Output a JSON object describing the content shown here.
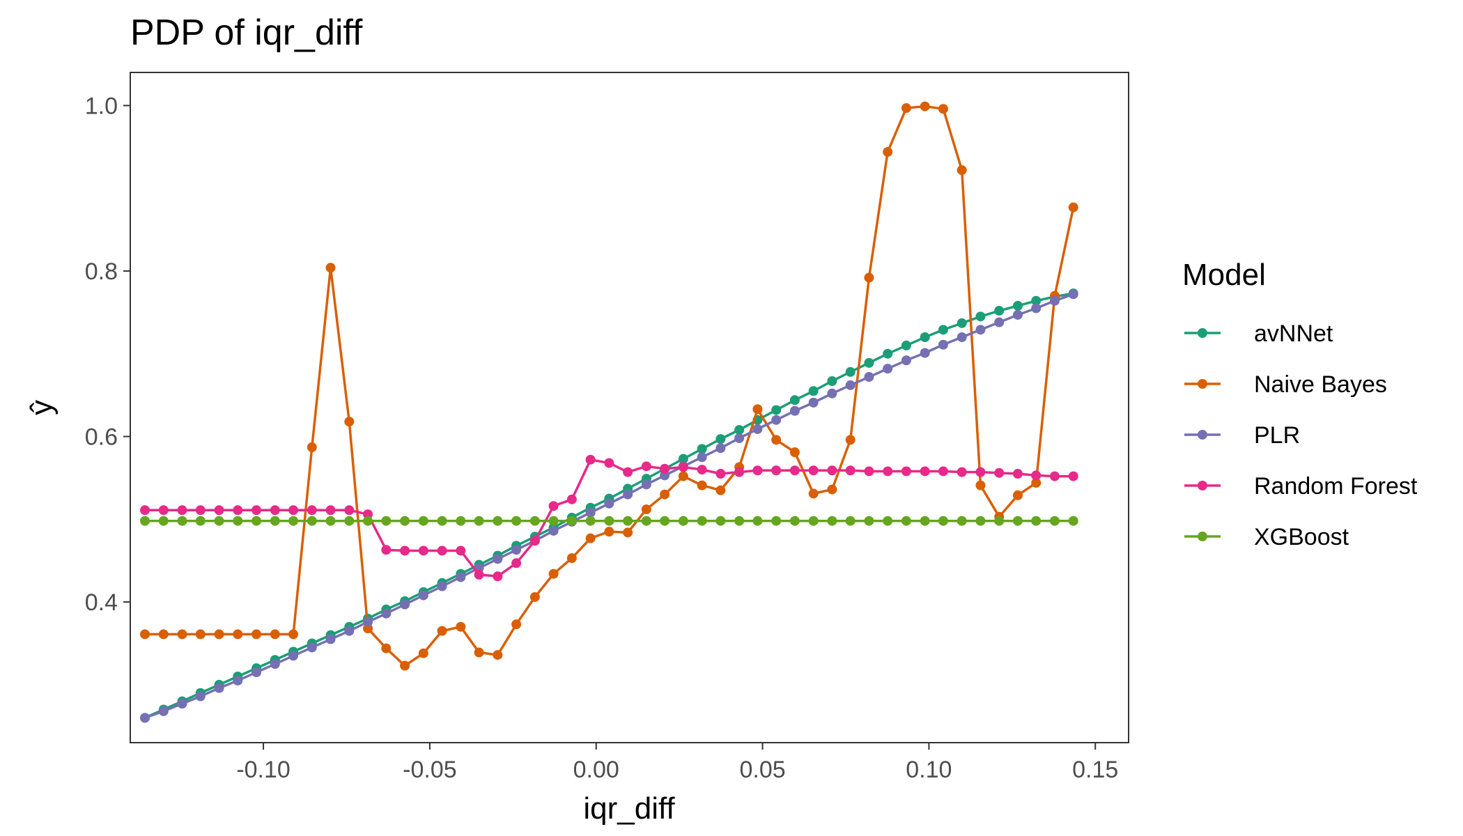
{
  "chart_data": {
    "type": "line",
    "title": "PDP of iqr_diff",
    "xlabel": "iqr_diff",
    "ylabel": "ŷ",
    "xlim": [
      -0.14,
      0.16
    ],
    "ylim": [
      0.23,
      1.04
    ],
    "xticks": [
      -0.1,
      -0.05,
      0.0,
      0.05,
      0.1,
      0.15
    ],
    "xtick_labels": [
      "-0.10",
      "-0.05",
      "0.00",
      "0.05",
      "0.10",
      "0.15"
    ],
    "yticks": [
      0.4,
      0.6,
      0.8,
      1.0
    ],
    "ytick_labels": [
      "0.4",
      "0.6",
      "0.8",
      "1.0"
    ],
    "grid": false,
    "legend": {
      "title": "Model",
      "position": "right"
    },
    "x": [
      -0.1356,
      -0.13,
      -0.1244,
      -0.1189,
      -0.1133,
      -0.1077,
      -0.1021,
      -0.0965,
      -0.091,
      -0.0854,
      -0.0798,
      -0.0742,
      -0.0686,
      -0.0631,
      -0.0575,
      -0.0519,
      -0.0463,
      -0.0407,
      -0.0352,
      -0.0296,
      -0.024,
      -0.0184,
      -0.0128,
      -0.0073,
      -0.0017,
      0.0039,
      0.0095,
      0.0151,
      0.0206,
      0.0262,
      0.0318,
      0.0374,
      0.043,
      0.0485,
      0.0541,
      0.0597,
      0.0653,
      0.0709,
      0.0764,
      0.082,
      0.0876,
      0.0932,
      0.0988,
      0.1043,
      0.1099,
      0.1155,
      0.1211,
      0.1267,
      0.1322,
      0.1378,
      0.1434
    ],
    "series": [
      {
        "name": "avNNet",
        "color": "#1B9E77",
        "values": [
          0.26,
          0.27,
          0.28,
          0.29,
          0.3,
          0.31,
          0.32,
          0.33,
          0.34,
          0.35,
          0.36,
          0.37,
          0.38,
          0.391,
          0.401,
          0.412,
          0.423,
          0.434,
          0.445,
          0.456,
          0.468,
          0.479,
          0.49,
          0.502,
          0.514,
          0.525,
          0.537,
          0.549,
          0.561,
          0.573,
          0.585,
          0.597,
          0.608,
          0.62,
          0.632,
          0.644,
          0.655,
          0.667,
          0.678,
          0.689,
          0.7,
          0.71,
          0.72,
          0.729,
          0.737,
          0.745,
          0.752,
          0.758,
          0.764,
          0.769,
          0.773
        ]
      },
      {
        "name": "Naive Bayes",
        "color": "#D95F02",
        "values": [
          0.361,
          0.361,
          0.361,
          0.361,
          0.361,
          0.361,
          0.361,
          0.361,
          0.361,
          0.587,
          0.804,
          0.618,
          0.368,
          0.344,
          0.323,
          0.338,
          0.365,
          0.37,
          0.339,
          0.336,
          0.373,
          0.406,
          0.434,
          0.453,
          0.477,
          0.485,
          0.484,
          0.512,
          0.53,
          0.552,
          0.541,
          0.535,
          0.563,
          0.633,
          0.596,
          0.581,
          0.531,
          0.536,
          0.596,
          0.792,
          0.944,
          0.997,
          0.999,
          0.996,
          0.922,
          0.541,
          0.503,
          0.529,
          0.544,
          0.77,
          0.877
        ]
      },
      {
        "name": "PLR",
        "color": "#7570B3",
        "values": [
          0.26,
          0.268,
          0.277,
          0.286,
          0.296,
          0.305,
          0.315,
          0.325,
          0.335,
          0.345,
          0.355,
          0.365,
          0.376,
          0.386,
          0.397,
          0.408,
          0.419,
          0.43,
          0.441,
          0.452,
          0.463,
          0.474,
          0.486,
          0.497,
          0.508,
          0.519,
          0.53,
          0.542,
          0.553,
          0.564,
          0.575,
          0.586,
          0.598,
          0.609,
          0.62,
          0.631,
          0.641,
          0.652,
          0.662,
          0.672,
          0.682,
          0.692,
          0.701,
          0.711,
          0.72,
          0.729,
          0.738,
          0.747,
          0.755,
          0.764,
          0.772
        ]
      },
      {
        "name": "Random Forest",
        "color": "#E7298A",
        "values": [
          0.511,
          0.511,
          0.511,
          0.511,
          0.511,
          0.511,
          0.511,
          0.511,
          0.511,
          0.511,
          0.511,
          0.511,
          0.506,
          0.463,
          0.462,
          0.462,
          0.462,
          0.462,
          0.433,
          0.431,
          0.447,
          0.474,
          0.516,
          0.524,
          0.572,
          0.568,
          0.557,
          0.564,
          0.561,
          0.563,
          0.56,
          0.555,
          0.557,
          0.559,
          0.559,
          0.559,
          0.559,
          0.559,
          0.559,
          0.558,
          0.558,
          0.558,
          0.558,
          0.558,
          0.557,
          0.557,
          0.556,
          0.555,
          0.553,
          0.552,
          0.552
        ]
      },
      {
        "name": "XGBoost",
        "color": "#66A61E",
        "values": [
          0.498,
          0.498,
          0.498,
          0.498,
          0.498,
          0.498,
          0.498,
          0.498,
          0.498,
          0.498,
          0.498,
          0.498,
          0.498,
          0.498,
          0.498,
          0.498,
          0.498,
          0.498,
          0.498,
          0.498,
          0.498,
          0.498,
          0.498,
          0.498,
          0.498,
          0.498,
          0.498,
          0.498,
          0.498,
          0.498,
          0.498,
          0.498,
          0.498,
          0.498,
          0.498,
          0.498,
          0.498,
          0.498,
          0.498,
          0.498,
          0.498,
          0.498,
          0.498,
          0.498,
          0.498,
          0.498,
          0.498,
          0.498,
          0.498,
          0.498,
          0.498
        ]
      }
    ]
  }
}
